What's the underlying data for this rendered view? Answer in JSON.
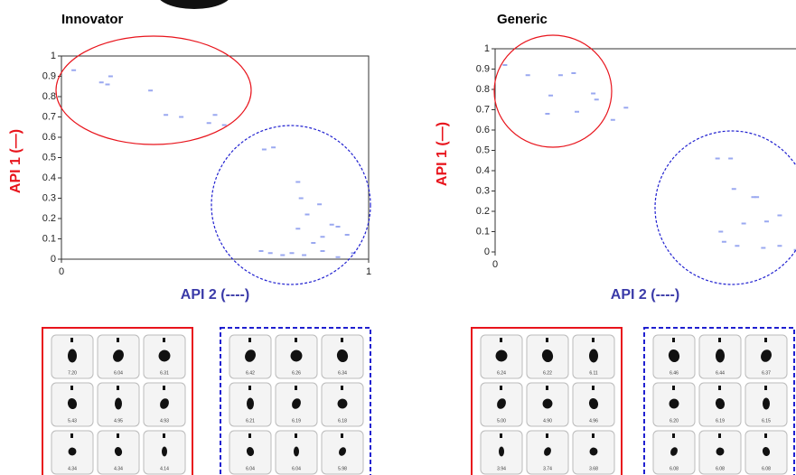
{
  "chart_data": [
    {
      "type": "scatter",
      "title": "Innovator",
      "y_label": "API 1 (—)",
      "x_label": "API 2 (----)",
      "color": "#9aa8f0",
      "xlim": [
        0,
        1
      ],
      "ylim": [
        0,
        1
      ],
      "xticks": [
        0,
        1
      ],
      "yticks": [
        0,
        0.1,
        0.2,
        0.3,
        0.4,
        0.5,
        0.6,
        0.7,
        0.8,
        0.9,
        1
      ],
      "x": [
        0.04,
        0.13,
        0.16,
        0.15,
        0.29,
        0.34,
        0.39,
        0.48,
        0.5,
        0.53,
        0.66,
        0.69,
        0.77,
        0.78,
        0.84,
        0.8,
        0.77,
        0.88,
        0.9,
        0.93,
        0.85,
        0.82,
        0.65,
        0.68,
        0.72,
        0.75,
        0.79,
        0.85,
        0.9,
        0.95
      ],
      "values": [
        0.93,
        0.87,
        0.9,
        0.86,
        0.83,
        0.71,
        0.7,
        0.67,
        0.71,
        0.66,
        0.54,
        0.55,
        0.38,
        0.3,
        0.27,
        0.22,
        0.15,
        0.17,
        0.16,
        0.12,
        0.11,
        0.08,
        0.04,
        0.03,
        0.02,
        0.03,
        0.02,
        0.04,
        0.01,
        0.03
      ]
    },
    {
      "type": "scatter",
      "title": "Generic",
      "y_label": "API 1 (—)",
      "x_label": "API 2 (----)",
      "color": "#9aa8f0",
      "xlim": [
        0,
        1
      ],
      "ylim": [
        0,
        1
      ],
      "xticks": [
        0
      ],
      "yticks": [
        0,
        0.1,
        0.2,
        0.3,
        0.4,
        0.5,
        0.6,
        0.7,
        0.8,
        0.9,
        1
      ],
      "x": [
        0.03,
        0.1,
        0.2,
        0.24,
        0.17,
        0.3,
        0.31,
        0.16,
        0.25,
        0.36,
        0.4,
        0.68,
        0.72,
        0.73,
        0.79,
        0.8,
        0.87,
        0.83,
        0.76,
        0.69,
        0.7,
        0.74,
        0.82,
        0.87,
        0.92,
        0.95
      ],
      "values": [
        0.92,
        0.87,
        0.87,
        0.88,
        0.77,
        0.78,
        0.75,
        0.68,
        0.69,
        0.65,
        0.71,
        0.46,
        0.46,
        0.31,
        0.27,
        0.27,
        0.18,
        0.15,
        0.14,
        0.1,
        0.05,
        0.03,
        0.02,
        0.03,
        0.01,
        0.04
      ]
    }
  ],
  "particle_panels": [
    {
      "border": "#e8141c",
      "dashed": false,
      "cells": [
        [
          "7.20",
          "6.04",
          "6.31"
        ],
        [
          "5.43",
          "4.95",
          "4.93"
        ],
        [
          "4.34",
          "4.34",
          "4.14"
        ]
      ]
    },
    {
      "border": "#2020d0",
      "dashed": true,
      "cells": [
        [
          "6.42",
          "6.26",
          "6.34"
        ],
        [
          "6.21",
          "6.19",
          "6.18"
        ],
        [
          "6.04",
          "6.04",
          "5.98"
        ]
      ]
    },
    {
      "border": "#e8141c",
      "dashed": false,
      "cells": [
        [
          "6.24",
          "6.22",
          "6.11"
        ],
        [
          "5.00",
          "4.90",
          "4.96"
        ],
        [
          "3.94",
          "3.74",
          "3.68"
        ]
      ]
    },
    {
      "border": "#2020d0",
      "dashed": true,
      "cells": [
        [
          "6.46",
          "6.44",
          "6.37"
        ],
        [
          "6.20",
          "6.19",
          "6.15"
        ],
        [
          "6.08",
          "6.08",
          "6.08"
        ]
      ]
    }
  ]
}
